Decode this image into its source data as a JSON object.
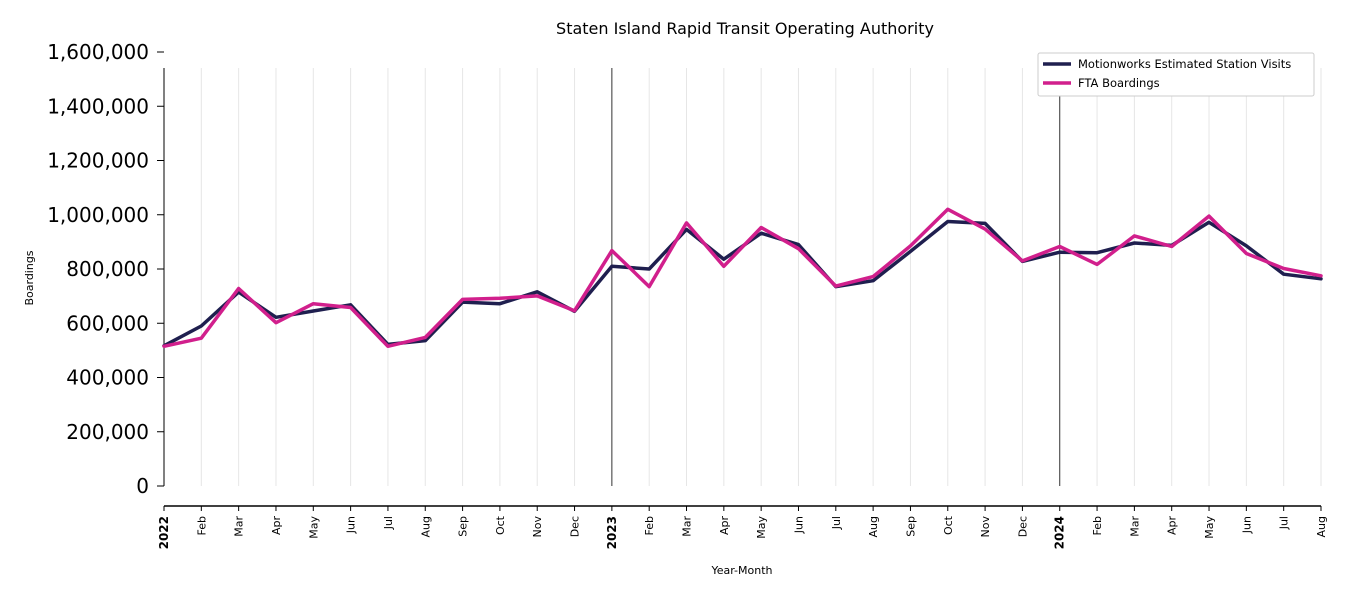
{
  "chart_data": {
    "type": "line",
    "title": "Staten Island Rapid Transit Operating Authority",
    "xlabel": "Year-Month",
    "ylabel": "Boardings",
    "ylim": [
      0,
      1600000
    ],
    "yticks": [
      0,
      200000,
      400000,
      600000,
      800000,
      1000000,
      1200000,
      1400000,
      1600000
    ],
    "ytick_labels": [
      "0",
      "200,000",
      "400,000",
      "600,000",
      "800,000",
      "1,000,000",
      "1,200,000",
      "1,400,000",
      "1,600,000"
    ],
    "categories": [
      "2022",
      "Feb",
      "Mar",
      "Apr",
      "May",
      "Jun",
      "Jul",
      "Aug",
      "Sep",
      "Oct",
      "Nov",
      "Dec",
      "2023",
      "Feb",
      "Mar",
      "Apr",
      "May",
      "Jun",
      "Jul",
      "Aug",
      "Sep",
      "Oct",
      "Nov",
      "Dec",
      "2024",
      "Feb",
      "Mar",
      "Apr",
      "May",
      "Jun",
      "Jul",
      "Aug"
    ],
    "year_markers": [
      "2022",
      "2023",
      "2024"
    ],
    "grid": "vertical",
    "legend_position": "top-right",
    "series": [
      {
        "name": "Motionworks Estimated Station Visits",
        "color": "#1f1f4f",
        "values": [
          517000,
          590000,
          715000,
          622000,
          645000,
          668000,
          522000,
          536000,
          678000,
          672000,
          716000,
          644000,
          810000,
          800000,
          946000,
          836000,
          932000,
          890000,
          735000,
          757000,
          865000,
          975000,
          968000,
          828000,
          862000,
          860000,
          896000,
          887000,
          972000,
          885000,
          781000,
          764000
        ]
      },
      {
        "name": "FTA Boardings",
        "color": "#d11f8c",
        "values": [
          515000,
          545000,
          728000,
          602000,
          672000,
          658000,
          515000,
          548000,
          688000,
          692000,
          701000,
          646000,
          868000,
          735000,
          970000,
          810000,
          953000,
          875000,
          737000,
          772000,
          885000,
          1020000,
          947000,
          830000,
          883000,
          817000,
          922000,
          883000,
          995000,
          857000,
          802000,
          775000
        ]
      }
    ]
  }
}
